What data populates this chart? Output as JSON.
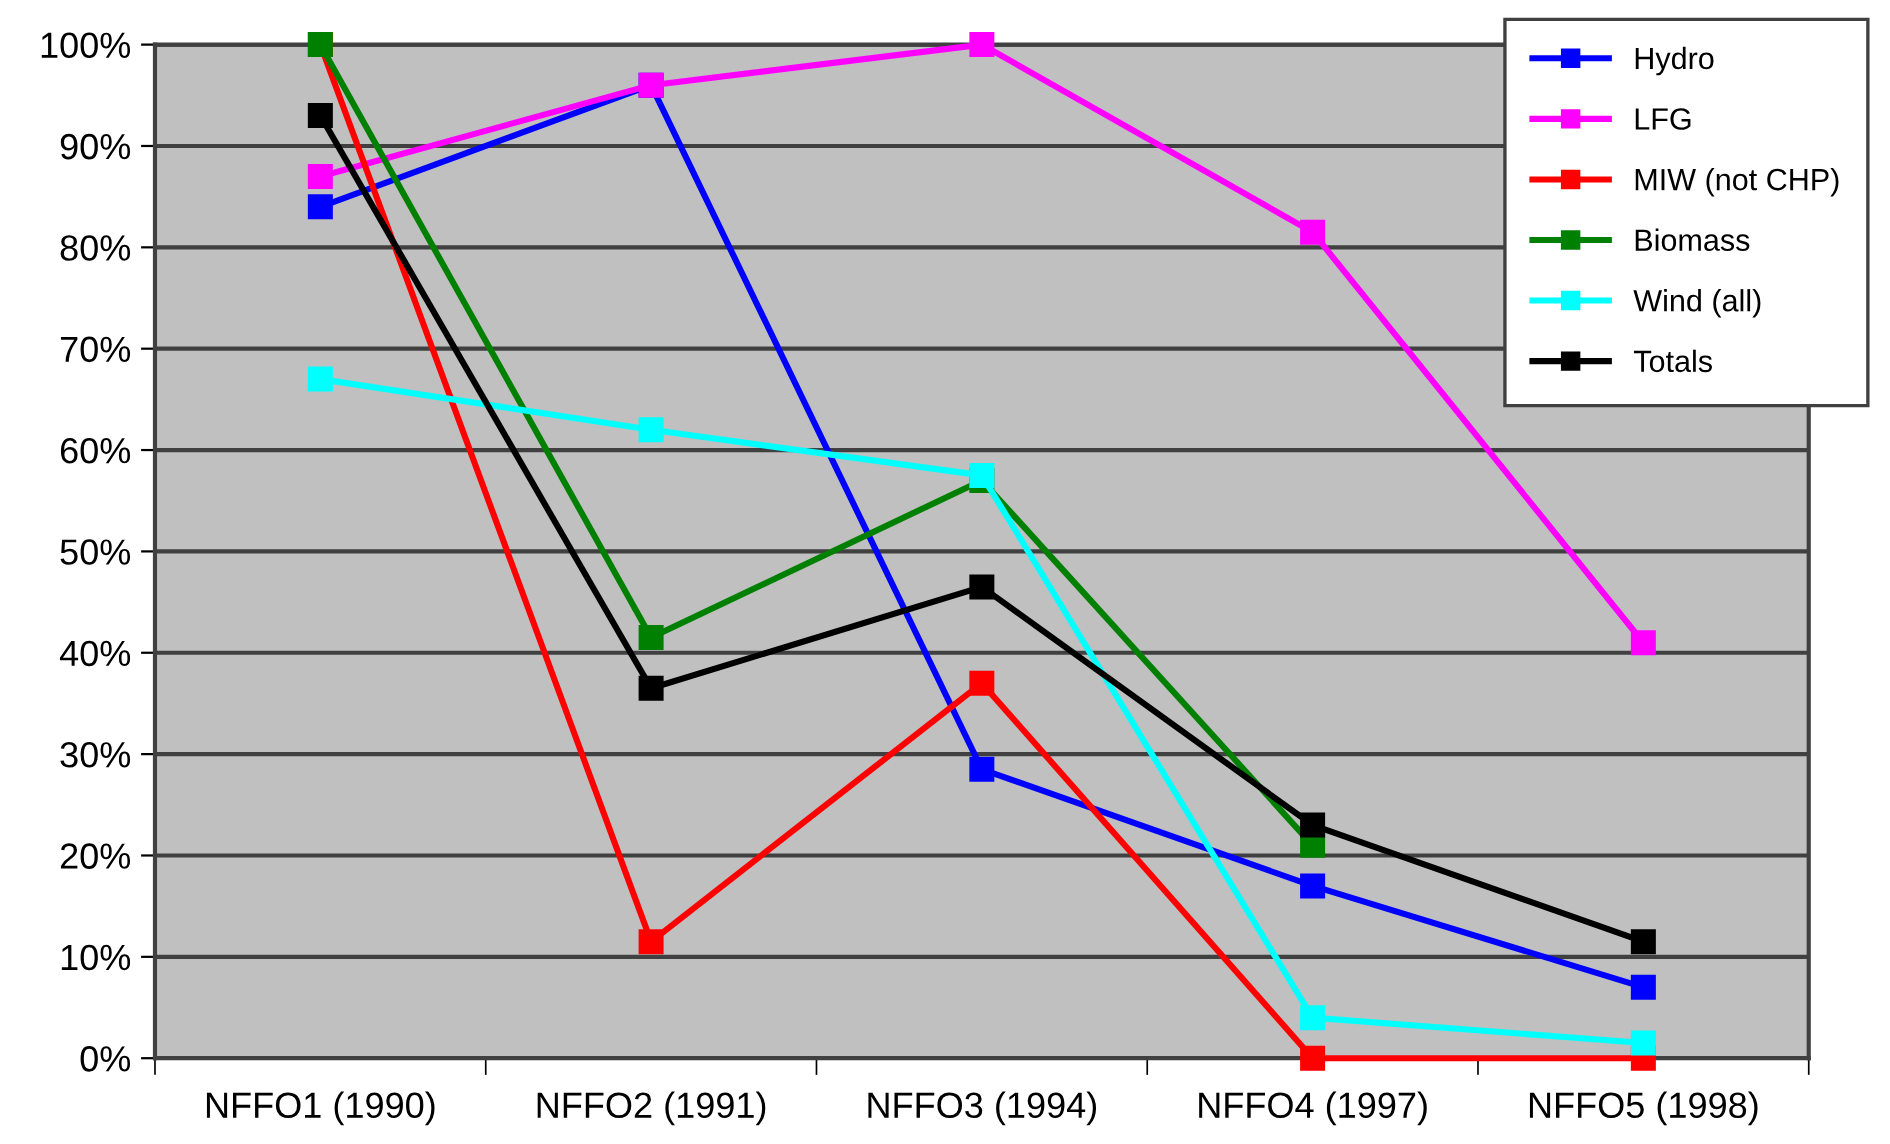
{
  "chart_data": {
    "type": "line",
    "categories": [
      "NFFO1 (1990)",
      "NFFO2 (1991)",
      "NFFO3 (1994)",
      "NFFO4 (1997)",
      "NFFO5 (1998)"
    ],
    "series": [
      {
        "name": "Hydro",
        "color": "#0000ff",
        "values": [
          84,
          96,
          28.5,
          17,
          7
        ]
      },
      {
        "name": "LFG",
        "color": "#ff00ff",
        "values": [
          87,
          96,
          100,
          81.5,
          41
        ]
      },
      {
        "name": "MIW (not CHP)",
        "color": "#ff0000",
        "values": [
          100,
          11.5,
          37,
          0,
          0
        ]
      },
      {
        "name": "Biomass",
        "color": "#008000",
        "values": [
          100,
          41.5,
          57,
          21,
          null
        ]
      },
      {
        "name": "Wind (all)",
        "color": "#00ffff",
        "values": [
          67,
          62,
          57.5,
          4,
          1.5
        ]
      },
      {
        "name": "Totals",
        "color": "#000000",
        "values": [
          93,
          36.5,
          46.5,
          23,
          11.5
        ]
      }
    ],
    "ylim": [
      0,
      100
    ],
    "yticks": [
      {
        "value": 0,
        "label": "0%"
      },
      {
        "value": 10,
        "label": "10%"
      },
      {
        "value": 20,
        "label": "20%"
      },
      {
        "value": 30,
        "label": "30%"
      },
      {
        "value": 40,
        "label": "40%"
      },
      {
        "value": 50,
        "label": "50%"
      },
      {
        "value": 60,
        "label": "60%"
      },
      {
        "value": 70,
        "label": "70%"
      },
      {
        "value": 80,
        "label": "80%"
      },
      {
        "value": 90,
        "label": "90%"
      },
      {
        "value": 100,
        "label": "100%"
      }
    ],
    "grid": "y",
    "legend": "top right",
    "marker": "square",
    "line_style": "solid"
  }
}
